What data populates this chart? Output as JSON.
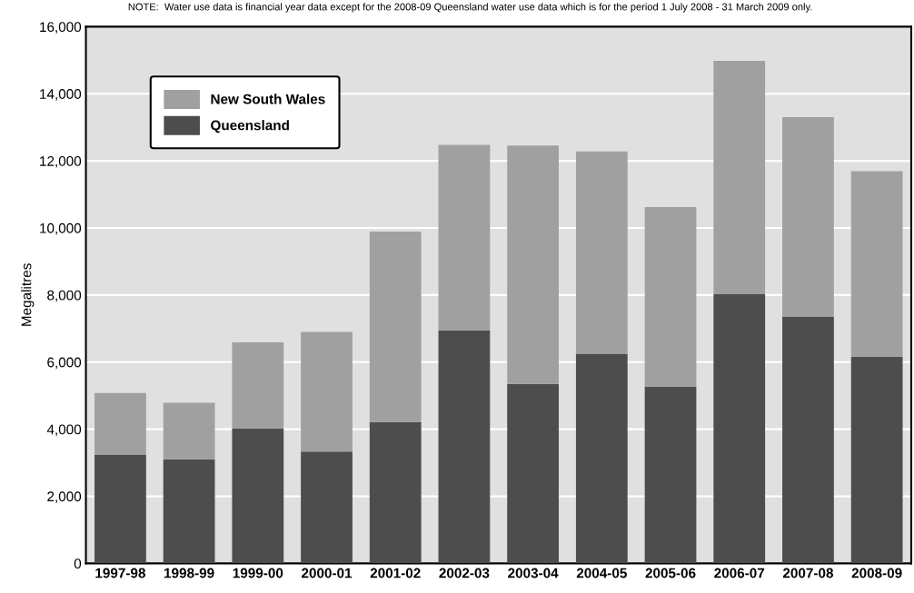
{
  "chart_data": {
    "type": "bar",
    "stacked": true,
    "ylabel": "Megalitres",
    "annotations": [
      "NOTE:  Water use data is financial year data except for the 2008-09 Queensland water use data which is for the period 1 July 2008 - 31 March 2009 only."
    ],
    "categories": [
      "1997-98",
      "1998-99",
      "1999-00",
      "2000-01",
      "2001-02",
      "2002-03",
      "2003-04",
      "2004-05",
      "2005-06",
      "2006-07",
      "2007-08",
      "2008-09"
    ],
    "series": [
      {
        "name": "Queensland",
        "color": "#4d4d4d",
        "values": [
          3230,
          3100,
          4020,
          3330,
          4210,
          6950,
          5350,
          6250,
          5270,
          8040,
          7350,
          6160
        ]
      },
      {
        "name": "New South Wales",
        "color": "#a0a0a0",
        "values": [
          1850,
          1690,
          2570,
          3570,
          5680,
          5530,
          7110,
          6030,
          5350,
          6940,
          5950,
          5530
        ]
      }
    ],
    "ylim": [
      0,
      16000
    ],
    "yticks": [
      0,
      {
        "value": 2000,
        "label": "2,000"
      },
      {
        "value": 4000,
        "label": "4,000"
      },
      {
        "value": 6000,
        "label": "6,000"
      },
      {
        "value": 8000,
        "label": "8,000"
      },
      {
        "value": 10000,
        "label": "10,000"
      },
      {
        "value": 12000,
        "label": "12,000"
      },
      {
        "value": 14000,
        "label": "14,000"
      },
      {
        "value": 16000,
        "label": "16,000"
      }
    ],
    "grid": "y",
    "legend": "top left"
  }
}
